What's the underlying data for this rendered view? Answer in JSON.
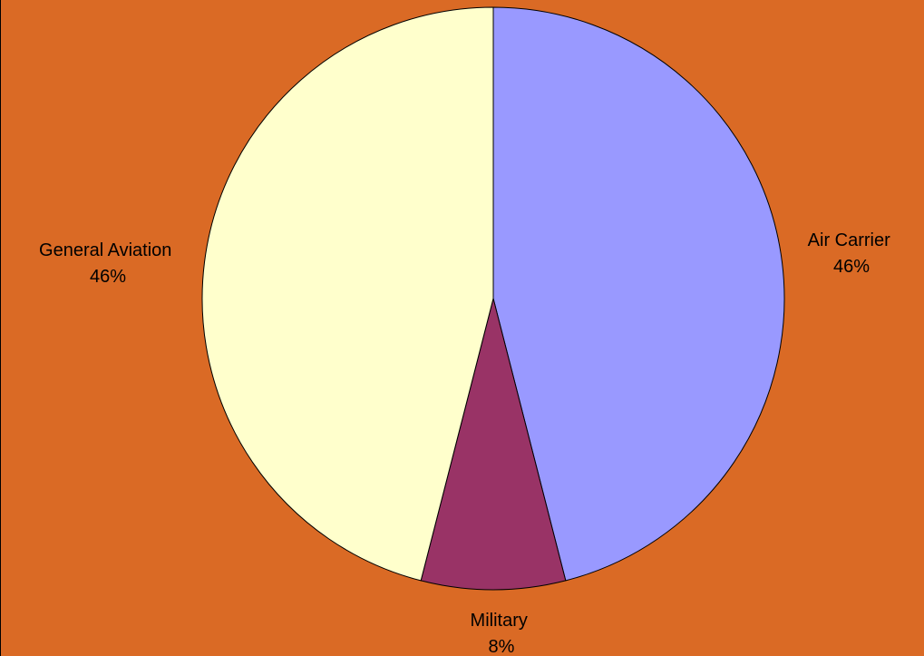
{
  "chart_data": {
    "type": "pie",
    "title": "",
    "background_color": "#DA6A25",
    "start": "12 o'clock",
    "direction": "clockwise",
    "slices": [
      {
        "label": "Air Carrier",
        "percent_label": "46%",
        "value": 46,
        "color": "#9999FF"
      },
      {
        "label": "Military",
        "percent_label": "8%",
        "value": 8,
        "color": "#993366"
      },
      {
        "label": "General Aviation",
        "percent_label": "46%",
        "value": 46,
        "color": "#FFFFCC"
      }
    ]
  }
}
